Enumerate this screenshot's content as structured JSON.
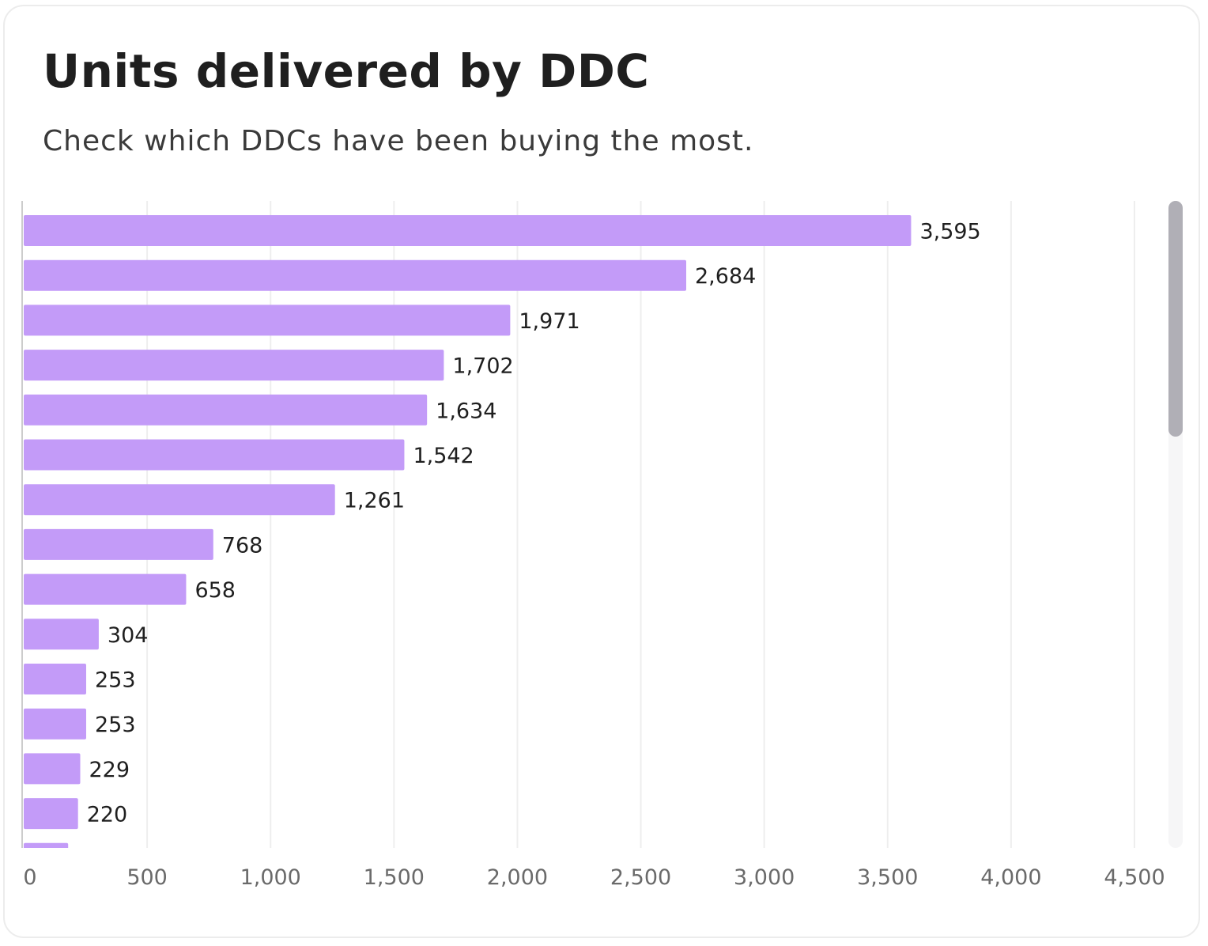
{
  "card": {
    "title": "Units delivered by DDC",
    "subtitle": "Check which DDCs have been buying the most."
  },
  "chart_data": {
    "type": "bar",
    "orientation": "horizontal",
    "title": "Units delivered by DDC",
    "subtitle": "Check which DDCs have been buying the most.",
    "xlabel": "",
    "ylabel": "",
    "values": [
      3595,
      2684,
      1971,
      1702,
      1634,
      1542,
      1261,
      768,
      658,
      304,
      253,
      253,
      229,
      220,
      180
    ],
    "value_labels": [
      "3,595",
      "2,684",
      "1,971",
      "1,702",
      "1,634",
      "1,542",
      "1,261",
      "768",
      "658",
      "304",
      "253",
      "253",
      "229",
      "220",
      ""
    ],
    "xlim": [
      0,
      4500
    ],
    "x_ticks": [
      0,
      500,
      1000,
      1500,
      2000,
      2500,
      3000,
      3500,
      4000,
      4500
    ],
    "x_tick_labels": [
      "0",
      "500",
      "1,000",
      "1,500",
      "2,000",
      "2,500",
      "3,000",
      "3,500",
      "4,000",
      "4,500"
    ],
    "grid": true,
    "legend": "none",
    "bar_color": "#c39bf8",
    "gridline_color": "#eeeeee",
    "axis_color": "#cccccc"
  },
  "scrollbar": {
    "position": 0.0
  }
}
